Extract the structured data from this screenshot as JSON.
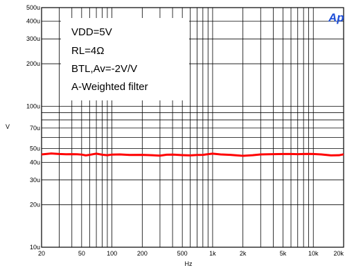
{
  "chart_data": {
    "type": "line",
    "xlabel": "Hz",
    "ylabel": "V",
    "x_scale": "log",
    "y_scale": "log",
    "xlim": [
      20,
      20000
    ],
    "ylim": [
      "10u",
      "500u"
    ],
    "x_ticks": [
      {
        "value": 20,
        "label": "20"
      },
      {
        "value": 50,
        "label": "50"
      },
      {
        "value": 100,
        "label": "100"
      },
      {
        "value": 200,
        "label": "200"
      },
      {
        "value": 500,
        "label": "500"
      },
      {
        "value": 1000,
        "label": "1k"
      },
      {
        "value": 2000,
        "label": "2k"
      },
      {
        "value": 5000,
        "label": "5k"
      },
      {
        "value": 10000,
        "label": "10k"
      },
      {
        "value": 20000,
        "label": "20k"
      }
    ],
    "y_ticks": [
      {
        "value": 10,
        "label": "10u"
      },
      {
        "value": 20,
        "label": "20u"
      },
      {
        "value": 30,
        "label": "30u"
      },
      {
        "value": 40,
        "label": "40u"
      },
      {
        "value": 50,
        "label": "50u"
      },
      {
        "value": 70,
        "label": "70u"
      },
      {
        "value": 100,
        "label": "100u"
      },
      {
        "value": 200,
        "label": "200u"
      },
      {
        "value": 300,
        "label": "300u"
      },
      {
        "value": 400,
        "label": "400u"
      },
      {
        "value": 500,
        "label": "500u"
      }
    ],
    "grid": true,
    "annotations": [
      "VDD=5V",
      "RL=4Ω",
      "BTL,Av=-2V/V",
      "A-Weighted filter"
    ],
    "brand_text": "Ap",
    "series": [
      {
        "color": "#ff0000",
        "x": [
          20,
          25,
          30,
          35,
          40,
          45,
          50,
          55,
          60,
          70,
          80,
          90,
          100,
          120,
          150,
          200,
          250,
          300,
          350,
          400,
          500,
          600,
          700,
          800,
          900,
          1000,
          1200,
          1500,
          2000,
          2500,
          3000,
          4000,
          5000,
          6000,
          7000,
          8000,
          9000,
          10000,
          12000,
          15000,
          18000,
          20000
        ],
        "y": [
          45.5,
          46.2,
          45.8,
          45.6,
          45.7,
          45.6,
          45.4,
          44.8,
          45.2,
          46.1,
          45.3,
          44.9,
          45.4,
          45.5,
          45.1,
          45.2,
          44.9,
          44.6,
          45.3,
          45.4,
          45.0,
          44.8,
          45.1,
          45.2,
          45.7,
          46.1,
          45.5,
          45.2,
          44.5,
          44.9,
          45.5,
          45.7,
          45.8,
          45.8,
          45.7,
          45.8,
          45.9,
          45.8,
          45.5,
          44.8,
          44.9,
          45.6
        ]
      }
    ]
  },
  "colors": {
    "background": "#ffffff",
    "grid": "#000000",
    "series": "#ff0000",
    "brand": "#1f4fd8"
  }
}
